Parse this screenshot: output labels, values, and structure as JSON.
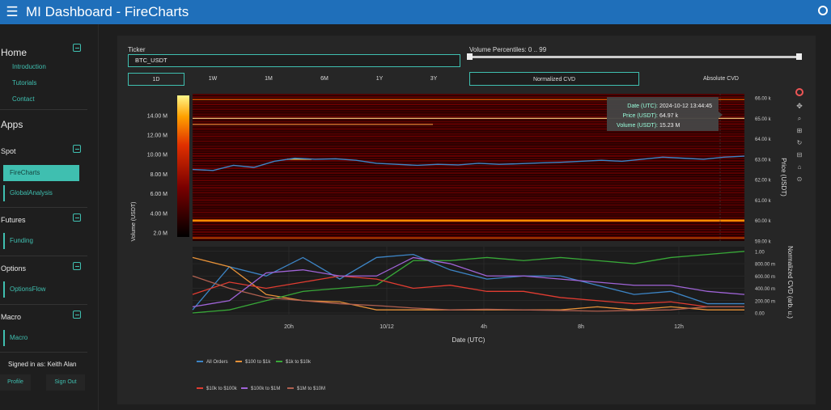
{
  "header": {
    "menu_icon": "hamburger-icon",
    "title": "MI Dashboard  -  FireCharts",
    "status_icon": "circle-icon"
  },
  "sidebar": {
    "home": {
      "title": "Home",
      "links": [
        "Introduction",
        "Tutorials",
        "Contact"
      ]
    },
    "apps_title": "Apps",
    "spot": {
      "title": "Spot",
      "items": [
        "FireCharts",
        "GlobalAnalysis"
      ]
    },
    "futures": {
      "title": "Futures",
      "items": [
        "Funding"
      ]
    },
    "options": {
      "title": "Options",
      "items": [
        "OptionsFlow"
      ]
    },
    "macro": {
      "title": "Macro",
      "items": [
        "Macro"
      ]
    },
    "signed_in": "Signed in as: Keith Alan",
    "profile_label": "Profile",
    "signout_label": "Sign Out",
    "accent_color": "#3fbfb0"
  },
  "controls": {
    "ticker_label": "Ticker",
    "ticker_value": "BTC_USDT",
    "percentiles_label": "Volume Percentiles: 0 .. 99",
    "timeframes": [
      "1D",
      "1W",
      "1M",
      "6M",
      "1Y",
      "3Y"
    ],
    "selected_timeframe": "1D",
    "cvd_modes": [
      "Normalized CVD",
      "Absolute CVD"
    ],
    "selected_cvd": "Normalized CVD"
  },
  "chart_data": [
    {
      "type": "heatmap",
      "colorbar_label": "Volume (USDT)",
      "colorbar_ticks": [
        "2.0 M",
        "4.00 M",
        "6.00 M",
        "8.00 M",
        "10.00 M",
        "12.00 M",
        "14.00 M"
      ],
      "ylabel": "Price (USDT)",
      "y_ticks": [
        "59.00 k",
        "60.00 k",
        "61.00 k",
        "62.00 k",
        "63.00 k",
        "64.00 k",
        "65.00 k",
        "66.00 k"
      ],
      "ylim": [
        59000,
        66200
      ],
      "series": [
        {
          "name": "Price",
          "color": "#3d85c6",
          "values": [
            62.5,
            62.45,
            62.7,
            62.6,
            62.9,
            63.05,
            63.0,
            63.02,
            62.95,
            62.8,
            62.75,
            62.7,
            62.75,
            62.72,
            62.8,
            62.75,
            62.78,
            62.82,
            62.85,
            62.9,
            62.95,
            62.9,
            63.0,
            63.1,
            63.05,
            63.0,
            63.1,
            63.15
          ]
        }
      ],
      "tooltip": {
        "date_label": "Date (UTC):",
        "date_value": "2024-10-12 13:44:45",
        "price_label": "Price (USDT):",
        "price_value": "64.97 k",
        "volume_label": "Volume (USDT):",
        "volume_value": "15.23 M"
      }
    },
    {
      "type": "line",
      "ylabel": "Normalized CVD (arb. u.)",
      "xlabel": "Date (UTC)",
      "x_ticks": [
        "20h",
        "10/12",
        "4h",
        "8h",
        "12h"
      ],
      "y_ticks": [
        "0.00",
        "200.00 m",
        "400.00 m",
        "600.00 m",
        "800.00 m",
        "1.00"
      ],
      "ylim": [
        0,
        1.05
      ],
      "series": [
        {
          "name": "All Orders",
          "color": "#3d85c6",
          "values": [
            0.05,
            0.75,
            0.6,
            0.9,
            0.55,
            0.9,
            0.95,
            0.7,
            0.55,
            0.6,
            0.6,
            0.45,
            0.3,
            0.35,
            0.15,
            0.15
          ]
        },
        {
          "name": "$100 to $1k",
          "color": "#e69138",
          "values": [
            0.9,
            0.75,
            0.3,
            0.2,
            0.18,
            0.05,
            0.05,
            0.05,
            0.05,
            0.05,
            0.05,
            0.1,
            0.05,
            0.1,
            0.05,
            0.05
          ]
        },
        {
          "name": "$1k to $10k",
          "color": "#38a838",
          "values": [
            0.0,
            0.05,
            0.2,
            0.35,
            0.4,
            0.45,
            0.85,
            0.85,
            0.9,
            0.85,
            0.9,
            0.85,
            0.8,
            0.9,
            0.95,
            1.0
          ]
        },
        {
          "name": "$10k to $100k",
          "color": "#e03c31",
          "values": [
            0.3,
            0.5,
            0.4,
            0.5,
            0.6,
            0.55,
            0.4,
            0.45,
            0.35,
            0.35,
            0.25,
            0.2,
            0.15,
            0.18,
            0.1,
            0.1
          ]
        },
        {
          "name": "$100k to $1M",
          "color": "#a064d8",
          "values": [
            0.1,
            0.2,
            0.65,
            0.7,
            0.6,
            0.6,
            0.9,
            0.8,
            0.6,
            0.6,
            0.55,
            0.5,
            0.45,
            0.45,
            0.35,
            0.3
          ]
        },
        {
          "name": "$1M to $10M",
          "color": "#b06050",
          "values": [
            0.6,
            0.4,
            0.25,
            0.2,
            0.15,
            0.12,
            0.08,
            0.05,
            0.06,
            0.05,
            0.04,
            0.03,
            0.04,
            0.05,
            0.1,
            0.1
          ]
        }
      ]
    }
  ],
  "toolbar_icons": [
    "plotly-logo-icon",
    "pan-icon",
    "zoom-icon",
    "zoom-in-icon",
    "zoom-out-icon",
    "autoscale-icon",
    "reset-icon",
    "spike-icon",
    "compare-icon",
    "camera-icon"
  ]
}
